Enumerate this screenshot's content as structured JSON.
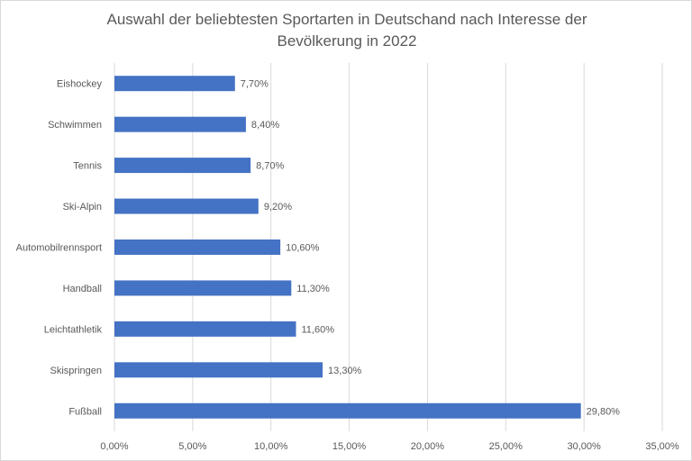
{
  "chart_data": {
    "type": "bar",
    "orientation": "horizontal",
    "title_line1": "Auswahl der beliebtesten Sportarten in Deutschand nach Interesse der",
    "title_line2": "Bevölkerung in 2022",
    "categories": [
      "Eishockey",
      "Schwimmen",
      "Tennis",
      "Ski-Alpin",
      "Automobilrennsport",
      "Handball",
      "Leichtathletik",
      "Skispringen",
      "Fußball"
    ],
    "values": [
      7.7,
      8.4,
      8.7,
      9.2,
      10.6,
      11.3,
      11.6,
      13.3,
      29.8
    ],
    "data_labels": [
      "7,70%",
      "8,40%",
      "8,70%",
      "9,20%",
      "10,60%",
      "11,30%",
      "11,60%",
      "13,30%",
      "29,80%"
    ],
    "x_ticks": [
      0,
      5,
      10,
      15,
      20,
      25,
      30,
      35
    ],
    "x_tick_labels": [
      "0,00%",
      "5,00%",
      "10,00%",
      "15,00%",
      "20,00%",
      "25,00%",
      "30,00%",
      "35,00%"
    ],
    "xlim": [
      0,
      35
    ],
    "grid": "vertical",
    "bar_color": "#4472c4",
    "gridline_color": "#d9d9d9",
    "text_color": "#595959"
  }
}
